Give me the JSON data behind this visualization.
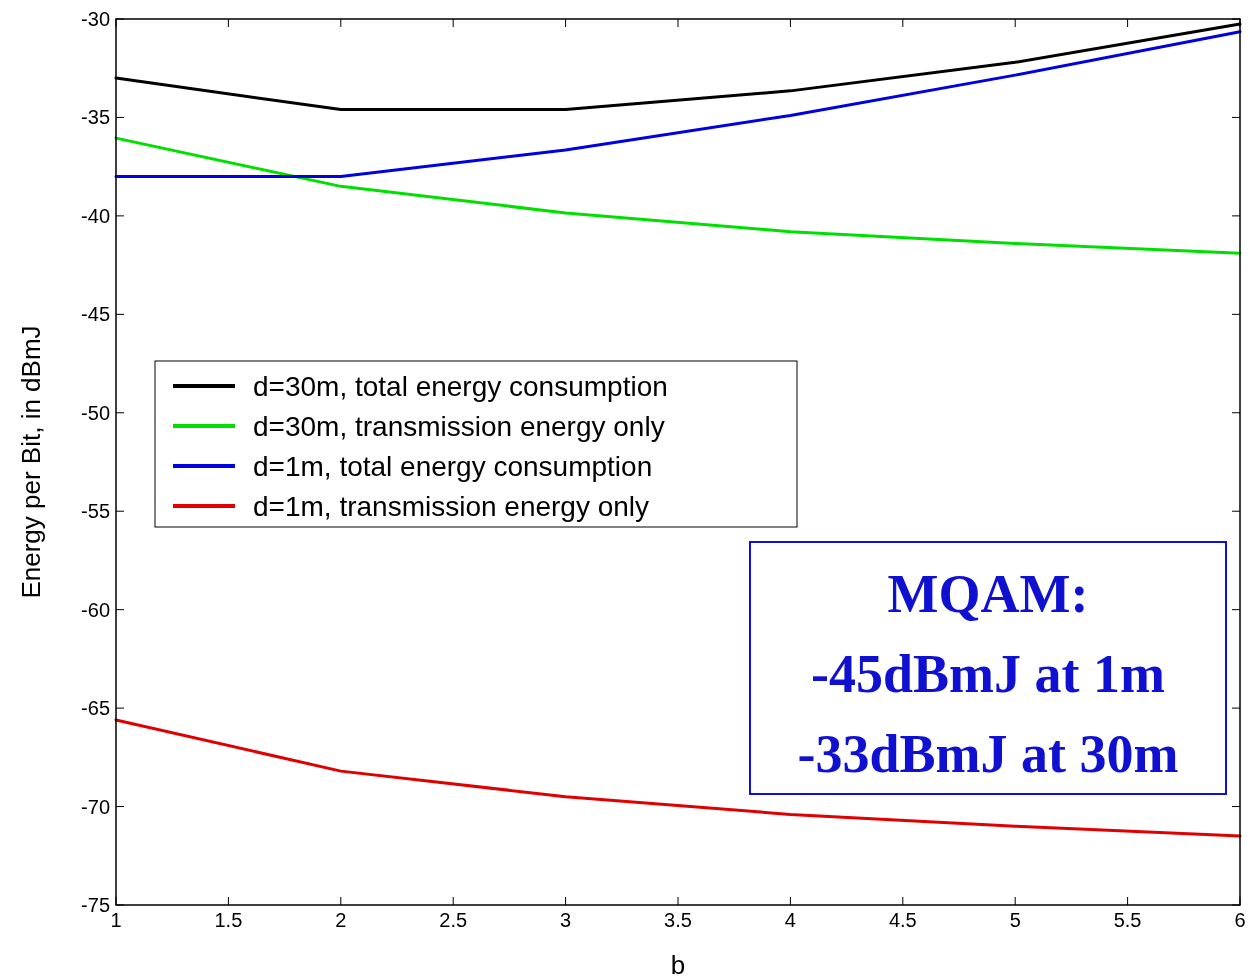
{
  "chart_data": {
    "type": "line",
    "xlabel": "b",
    "ylabel": "Energy per Bit, in dBmJ",
    "x": [
      1,
      2,
      3,
      4,
      5,
      6
    ],
    "series": [
      {
        "name": "d=30m, total energy consumption",
        "color": "#000000",
        "values": [
          -33.0,
          -34.6,
          -34.6,
          -33.65,
          -32.2,
          -30.25
        ]
      },
      {
        "name": "d=30m, transmission energy only",
        "color": "#00e000",
        "values": [
          -36.05,
          -38.5,
          -39.85,
          -40.8,
          -41.4,
          -41.9
        ]
      },
      {
        "name": "d=1m, total energy consumption",
        "color": "#0000e0",
        "values": [
          -38.0,
          -38.0,
          -36.65,
          -34.9,
          -32.85,
          -30.65
        ]
      },
      {
        "name": "d=1m, transmission energy only",
        "color": "#e00000",
        "values": [
          -65.6,
          -68.2,
          -69.5,
          -70.4,
          -71.0,
          -71.5
        ]
      }
    ],
    "xlim": [
      1,
      6
    ],
    "xticks": [
      1,
      1.5,
      2,
      2.5,
      3,
      3.5,
      4,
      4.5,
      5,
      5.5,
      6
    ],
    "ylim": [
      -75,
      -30
    ],
    "yticks": [
      -75,
      -70,
      -65,
      -60,
      -55,
      -50,
      -45,
      -40,
      -35,
      -30
    ],
    "legend": "left",
    "grid": false,
    "marker": "none",
    "line_style": "solid",
    "annotations": [
      "MQAM:\n-45dBmJ at 1m\n-33dBmJ at 30m"
    ]
  }
}
